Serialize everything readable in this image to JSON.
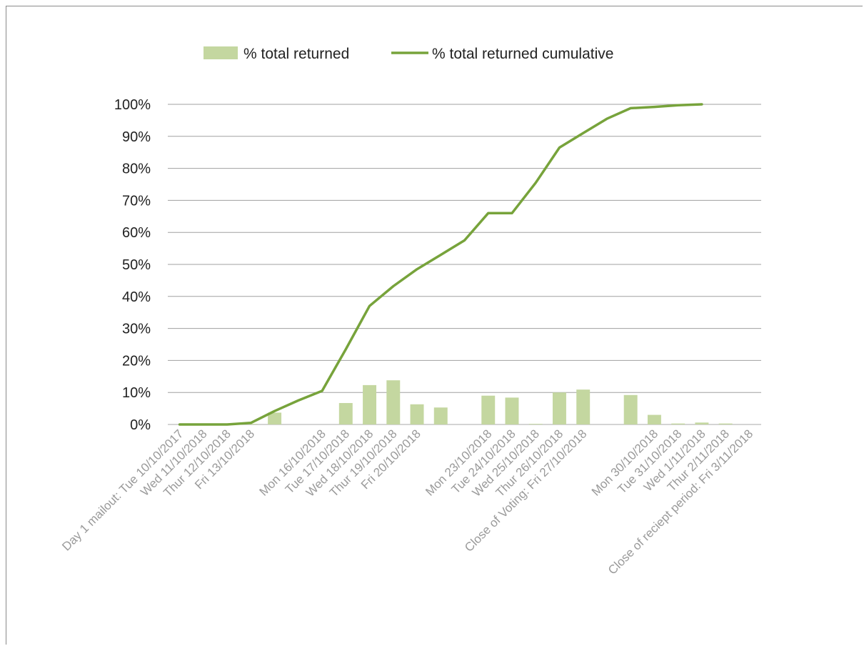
{
  "chart_data": {
    "type": "bar+line",
    "categories": [
      "Day 1 mailout: Tue 10/10/2017",
      "Wed 11/10/2018",
      "Thur 12/10/2018",
      "Fri 13/10/2018",
      "",
      "",
      "Mon 16/10/2018",
      "Tue 17/10/2018",
      "Wed 18/10/2018",
      "Thur 19/10/2018",
      "Fri 20/10/2018",
      "",
      "",
      "Mon 23/10/2018",
      "Tue 24/10/2018",
      "Wed 25/10/2018",
      "Thur 26/10/2018",
      "Close of Voting: Fri 27/10/2018",
      "",
      "",
      "Mon 30/10/2018",
      "Tue 31/10/2018",
      "Wed 1/11/2018",
      "Thur 2/11/2018",
      "Close of reciept period: Fri 3/11/2018"
    ],
    "series": [
      {
        "name": "% total returned",
        "type": "bar",
        "color": "#c4d7a0",
        "values": [
          0,
          0,
          0,
          0.2,
          3.7,
          0,
          0,
          6.7,
          12.3,
          13.8,
          6.3,
          5.3,
          0,
          9.0,
          8.4,
          0.2,
          10.0,
          10.9,
          0,
          9.2,
          3.0,
          0.3,
          0.6,
          0.3,
          0
        ]
      },
      {
        "name": "% total returned cumulative",
        "type": "line",
        "color": "#77a33b",
        "values": [
          0,
          0,
          0,
          0.5,
          4.2,
          7.5,
          10.5,
          23.5,
          37,
          43.2,
          48.5,
          53,
          57.5,
          66,
          66,
          75.5,
          86.5,
          91,
          95.5,
          98.8,
          99.2,
          99.7,
          100,
          null,
          null
        ]
      }
    ],
    "y_ticks": [
      "0%",
      "10%",
      "20%",
      "30%",
      "40%",
      "50%",
      "60%",
      "70%",
      "80%",
      "90%",
      "100%"
    ],
    "ylim": [
      0,
      100
    ],
    "grid": true,
    "legend_position": "top"
  }
}
